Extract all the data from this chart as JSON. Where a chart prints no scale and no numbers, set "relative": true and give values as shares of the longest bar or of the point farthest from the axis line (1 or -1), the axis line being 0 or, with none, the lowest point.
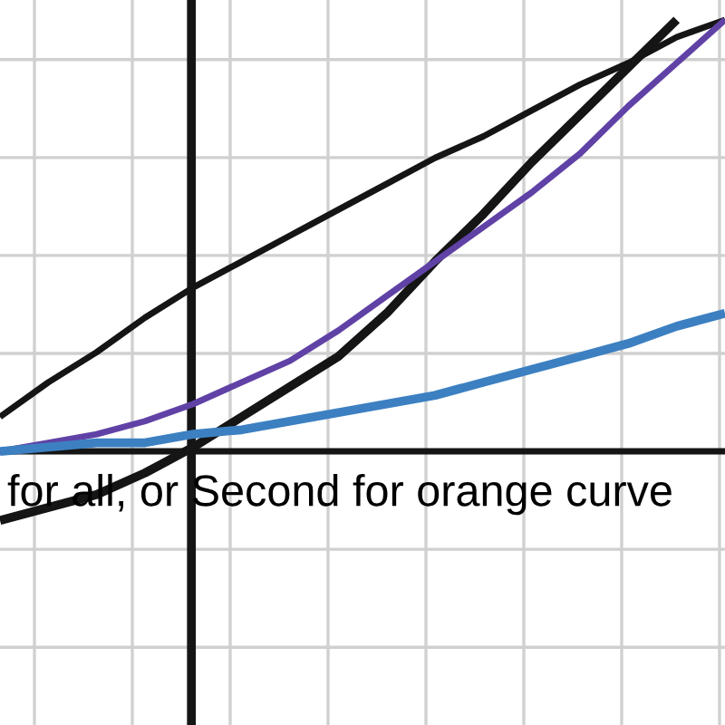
{
  "chart_data": {
    "type": "line",
    "relative": true,
    "grid": true,
    "tick_labels": false,
    "line_style": "solid",
    "marker": "none",
    "categories": [
      null,
      null,
      null,
      null,
      null,
      null,
      null,
      null,
      null,
      null,
      null,
      null,
      null,
      null,
      null,
      null
    ],
    "series": [
      {
        "color": "#151515",
        "values": [
          0.08,
          0.16,
          0.23,
          0.31,
          0.38,
          0.44,
          0.5,
          0.56,
          0.62,
          0.68,
          0.73,
          0.79,
          0.85,
          0.9,
          0.96,
          1
        ]
      },
      {
        "color": "#151515",
        "values": [
          -0.16,
          -0.13,
          -0.1,
          -0.05,
          0.01,
          0.08,
          0.15,
          0.22,
          0.32,
          0.44,
          0.55,
          0.67,
          0.78,
          0.89,
          1,
          null
        ]
      },
      {
        "color": "#6042a6",
        "values": [
          0,
          0.02,
          0.04,
          0.07,
          0.11,
          0.16,
          0.21,
          0.28,
          0.36,
          0.44,
          0.52,
          0.6,
          0.69,
          0.8,
          0.9,
          1
        ]
      },
      {
        "color": "#3d80c2",
        "values": [
          0,
          0.01,
          0.02,
          0.02,
          0.04,
          0.05,
          0.07,
          0.09,
          0.11,
          0.13,
          0.16,
          0.19,
          0.22,
          0.25,
          0.29,
          0.32
        ]
      }
    ],
    "annotations": [
      "for all, or Second for orange curve"
    ]
  }
}
